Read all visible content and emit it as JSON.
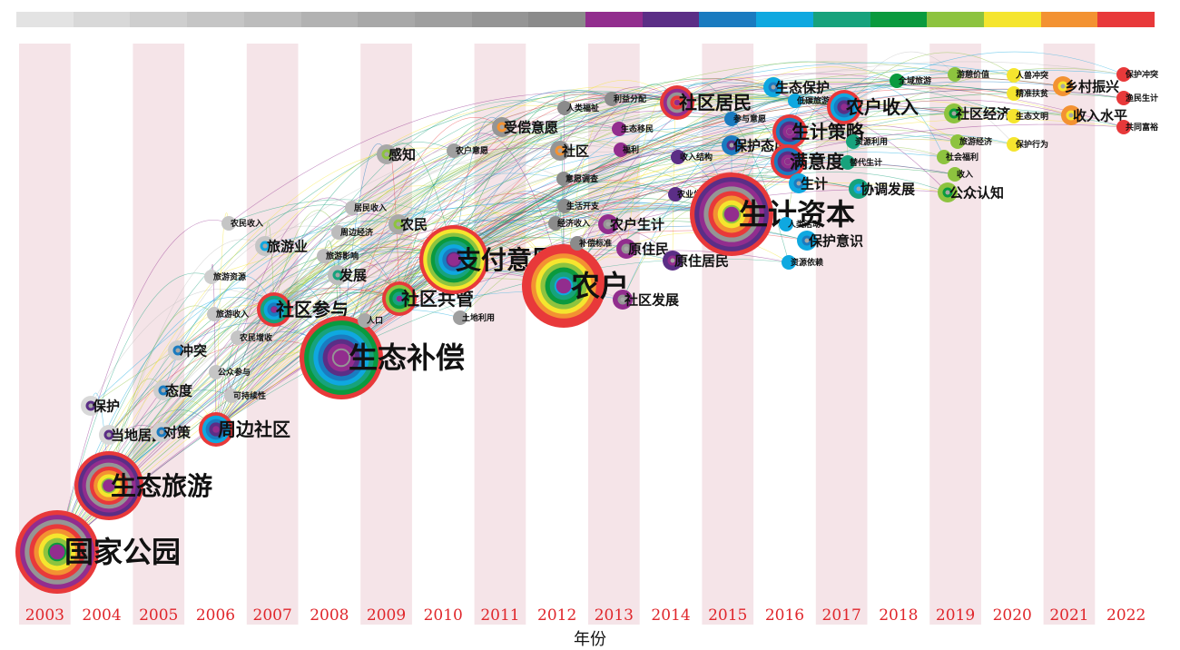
{
  "colorbar": [
    "#e3e3e3",
    "#d8d8d8",
    "#cecece",
    "#c5c5c5",
    "#bcbcbc",
    "#b2b2b2",
    "#a8a8a8",
    "#9f9f9f",
    "#959595",
    "#8b8b8b",
    "#922d8e",
    "#5b2e86",
    "#1a7bc0",
    "#0fa8e0",
    "#17a27c",
    "#0a9a3e",
    "#8dc33f",
    "#f5e52e",
    "#f39232",
    "#e8393a"
  ],
  "years": [
    "2003",
    "2004",
    "2005",
    "2006",
    "2007",
    "2008",
    "2009",
    "2010",
    "2011",
    "2012",
    "2013",
    "2014",
    "2015",
    "2016",
    "2017",
    "2018",
    "2019",
    "2020",
    "2021",
    "2022"
  ],
  "x_axis_label": "年份",
  "colors": {
    "band": "#f5e4e8",
    "year_text": "#e0262b"
  },
  "keywords": [
    {
      "label": "国家公园",
      "year": "2003",
      "size": "xl"
    },
    {
      "label": "生态旅游",
      "year": "2004",
      "size": "l"
    },
    {
      "label": "保护",
      "year": "2004",
      "size": "s"
    },
    {
      "label": "当地居民",
      "year": "2004",
      "size": "s"
    },
    {
      "label": "对策",
      "year": "2005",
      "size": "s"
    },
    {
      "label": "态度",
      "year": "2005",
      "size": "s"
    },
    {
      "label": "冲突",
      "year": "2005",
      "size": "s"
    },
    {
      "label": "旅游资源",
      "year": "2005",
      "size": "xs"
    },
    {
      "label": "周边社区",
      "year": "2006",
      "size": "m"
    },
    {
      "label": "农民收入",
      "year": "2006",
      "size": "xs"
    },
    {
      "label": "旅游收入",
      "year": "2006",
      "size": "xs"
    },
    {
      "label": "公众参与",
      "year": "2006",
      "size": "xs"
    },
    {
      "label": "可持续性",
      "year": "2006",
      "size": "xs"
    },
    {
      "label": "旅游业",
      "year": "2006",
      "size": "s"
    },
    {
      "label": "农民增收",
      "year": "2006",
      "size": "xs"
    },
    {
      "label": "社区参与",
      "year": "2007",
      "size": "m"
    },
    {
      "label": "发展",
      "year": "2007",
      "size": "s"
    },
    {
      "label": "居民收入",
      "year": "2007",
      "size": "xs"
    },
    {
      "label": "周边经济",
      "year": "2007",
      "size": "xs"
    },
    {
      "label": "旅游影响",
      "year": "2007",
      "size": "xs"
    },
    {
      "label": "生态补偿",
      "year": "2008",
      "size": "xl"
    },
    {
      "label": "感知",
      "year": "2009",
      "size": "s"
    },
    {
      "label": "农民",
      "year": "2009",
      "size": "s"
    },
    {
      "label": "人口",
      "year": "2009",
      "size": "xs"
    },
    {
      "label": "社区共管",
      "year": "2009",
      "size": "m"
    },
    {
      "label": "支付意愿",
      "year": "2010",
      "size": "l"
    },
    {
      "label": "农户意愿",
      "year": "2010",
      "size": "xs"
    },
    {
      "label": "土地利用",
      "year": "2010",
      "size": "xs"
    },
    {
      "label": "受偿意愿",
      "year": "2011",
      "size": "s"
    },
    {
      "label": "社区",
      "year": "2011",
      "size": "s"
    },
    {
      "label": "农户",
      "year": "2012",
      "size": "xl"
    },
    {
      "label": "人类福祉",
      "year": "2012",
      "size": "xs"
    },
    {
      "label": "意愿调查",
      "year": "2012",
      "size": "xs"
    },
    {
      "label": "生活开支",
      "year": "2012",
      "size": "xs"
    },
    {
      "label": "经济收入",
      "year": "2012",
      "size": "xs"
    },
    {
      "label": "补偿标准",
      "year": "2012",
      "size": "xs"
    },
    {
      "label": "利益分配",
      "year": "2012",
      "size": "xs"
    },
    {
      "label": "生态移民",
      "year": "2013",
      "size": "xs"
    },
    {
      "label": "福利",
      "year": "2013",
      "size": "xs"
    },
    {
      "label": "农户生计",
      "year": "2013",
      "size": "s"
    },
    {
      "label": "原住民",
      "year": "2013",
      "size": "s"
    },
    {
      "label": "社区发展",
      "year": "2013",
      "size": "s"
    },
    {
      "label": "社区居民",
      "year": "2014",
      "size": "m"
    },
    {
      "label": "收入结构",
      "year": "2014",
      "size": "xs"
    },
    {
      "label": "农业生产",
      "year": "2014",
      "size": "xs"
    },
    {
      "label": "原住居民",
      "year": "2014",
      "size": "s"
    },
    {
      "label": "生计资本",
      "year": "2015",
      "size": "xl"
    },
    {
      "label": "参与意愿",
      "year": "2015",
      "size": "xs"
    },
    {
      "label": "保护态度",
      "year": "2015",
      "size": "s"
    },
    {
      "label": "生态保护",
      "year": "2016",
      "size": "s"
    },
    {
      "label": "低碳旅游",
      "year": "2016",
      "size": "xs"
    },
    {
      "label": "生计策略",
      "year": "2016",
      "size": "m"
    },
    {
      "label": "满意度",
      "year": "2016",
      "size": "m"
    },
    {
      "label": "生计",
      "year": "2016",
      "size": "s"
    },
    {
      "label": "人类活动",
      "year": "2016",
      "size": "xs"
    },
    {
      "label": "保护意识",
      "year": "2016",
      "size": "s"
    },
    {
      "label": "资源依赖",
      "year": "2016",
      "size": "xs"
    },
    {
      "label": "农户收入",
      "year": "2017",
      "size": "m"
    },
    {
      "label": "资源利用",
      "year": "2017",
      "size": "xs"
    },
    {
      "label": "替代生计",
      "year": "2017",
      "size": "xs"
    },
    {
      "label": "协调发展",
      "year": "2017",
      "size": "s"
    },
    {
      "label": "全域旅游",
      "year": "2018",
      "size": "xs"
    },
    {
      "label": "游憩价值",
      "year": "2019",
      "size": "xs"
    },
    {
      "label": "社区经济",
      "year": "2019",
      "size": "s"
    },
    {
      "label": "旅游经济",
      "year": "2019",
      "size": "xs"
    },
    {
      "label": "社会福利",
      "year": "2019",
      "size": "xs"
    },
    {
      "label": "收入",
      "year": "2019",
      "size": "xs"
    },
    {
      "label": "公众认知",
      "year": "2019",
      "size": "s"
    },
    {
      "label": "人兽冲突",
      "year": "2020",
      "size": "xs"
    },
    {
      "label": "精准扶贫",
      "year": "2020",
      "size": "xs"
    },
    {
      "label": "生态文明",
      "year": "2020",
      "size": "xs"
    },
    {
      "label": "保护行为",
      "year": "2020",
      "size": "xs"
    },
    {
      "label": "乡村振兴",
      "year": "2021",
      "size": "s"
    },
    {
      "label": "收入水平",
      "year": "2021",
      "size": "s"
    },
    {
      "label": "保护冲突",
      "year": "2022",
      "size": "xs"
    },
    {
      "label": "渔民生计",
      "year": "2022",
      "size": "xs"
    },
    {
      "label": "共同富裕",
      "year": "2022",
      "size": "xs"
    }
  ]
}
